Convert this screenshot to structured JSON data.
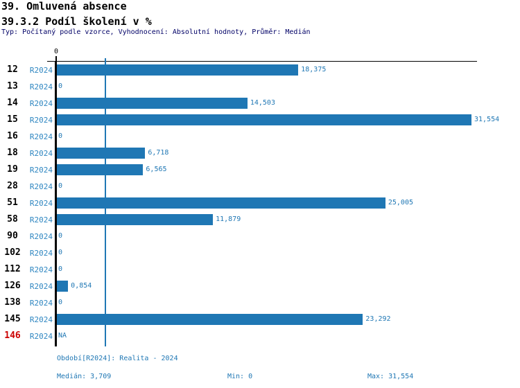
{
  "header": {
    "title": "39. Omluvená absence",
    "subtitle": "39.3.2 Podíl školení v %",
    "meta": "Typ: Počítaný podle vzorce, Vyhodnocení: Absolutní hodnoty, Průměr: Medián"
  },
  "chart_data": {
    "type": "bar",
    "orientation": "horizontal",
    "title": "39.3.2 Podíl školení v %",
    "axis_zero_label": "0",
    "series_label": "R2024",
    "categories": [
      "12",
      "13",
      "14",
      "15",
      "16",
      "18",
      "19",
      "28",
      "51",
      "58",
      "90",
      "102",
      "112",
      "126",
      "138",
      "145",
      "146"
    ],
    "values": [
      18.375,
      0,
      14.503,
      31.554,
      0,
      6.718,
      6.565,
      0,
      25.005,
      11.879,
      0,
      0,
      0,
      0.854,
      0,
      23.292,
      null
    ],
    "value_labels": [
      "18,375",
      "0",
      "14,503",
      "31,554",
      "0",
      "6,718",
      "6,565",
      "0",
      "25,005",
      "11,879",
      "0",
      "0",
      "0",
      "0,854",
      "0",
      "23,292",
      "NA"
    ],
    "xlim": [
      0,
      31.554
    ],
    "median": 3.709,
    "grid": false,
    "legend": "none",
    "bar_color": "#1f77b4",
    "median_line_color": "#1f77b4",
    "series_label_color": "#2e86c1",
    "value_label_color": "#1f77b4",
    "highlight_category": "146",
    "highlight_color": "#cc0000"
  },
  "footer": {
    "period": "Období[R2024]: Realita - 2024",
    "median": "Medián: 3,709",
    "min": "Min: 0",
    "max": "Max: 31,554"
  }
}
